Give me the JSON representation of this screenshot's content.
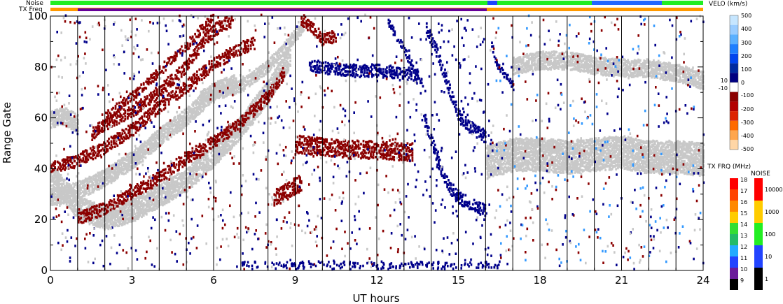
{
  "chart_data": {
    "type": "heatmap",
    "xlabel": "UT hours",
    "ylabel": "Range Gate",
    "xlim": [
      0,
      24
    ],
    "ylim": [
      0,
      100
    ],
    "x_ticks": [
      "0",
      "3",
      "6",
      "9",
      "12",
      "15",
      "18",
      "21",
      "24"
    ],
    "y_ticks": [
      "0",
      "20",
      "40",
      "60",
      "80",
      "100"
    ],
    "grid": "vertical lines every hour",
    "top_strips": {
      "noise_label": "Noise",
      "txfreq_label": "TX Freq"
    },
    "velocity_colorbar": {
      "title": "VELO (km/s)",
      "ticks": [
        "500",
        "400",
        "300",
        "200",
        "100",
        "0",
        "10",
        "-10",
        "-100",
        "-200",
        "-300",
        "-400",
        "-500"
      ]
    },
    "txfreq_colorbar": {
      "title": "TX FRQ (MHz)",
      "ticks": [
        "18",
        "17",
        "16",
        "15",
        "14",
        "13",
        "12",
        "11",
        "10",
        "9"
      ]
    },
    "noise_colorbar": {
      "title": "NOISE",
      "ticks": [
        "10000",
        "1000",
        "100",
        "10",
        "1"
      ]
    },
    "echo_bands": [
      {
        "name": "gray band A",
        "color": "#c8c8c8",
        "points": [
          [
            0,
            37
          ],
          [
            1,
            24
          ],
          [
            2,
            20
          ],
          [
            3,
            23
          ],
          [
            4,
            29
          ],
          [
            5,
            35
          ],
          [
            6,
            45
          ],
          [
            7,
            56
          ],
          [
            8,
            70
          ],
          [
            8.8,
            84
          ]
        ],
        "halfwidth": 4
      },
      {
        "name": "gray band B",
        "color": "#c8c8c8",
        "points": [
          [
            0,
            59
          ],
          [
            0.5,
            60
          ],
          [
            1,
            57
          ]
        ],
        "halfwidth": 3
      },
      {
        "name": "gray band C",
        "color": "#c8c8c8",
        "points": [
          [
            5.5,
            68
          ],
          [
            6,
            69
          ],
          [
            7,
            72
          ],
          [
            8,
            80
          ],
          [
            9,
            92
          ],
          [
            9.3,
            96
          ]
        ],
        "halfwidth": 2
      },
      {
        "name": "gray band D",
        "color": "#c8c8c8",
        "points": [
          [
            0,
            28
          ],
          [
            1,
            31
          ],
          [
            2,
            36
          ],
          [
            3,
            43
          ],
          [
            4,
            52
          ],
          [
            5,
            60
          ],
          [
            6,
            70
          ],
          [
            6.8,
            73
          ]
        ],
        "halfwidth": 3
      },
      {
        "name": "gray band E",
        "color": "#c8c8c8",
        "points": [
          [
            16,
            42
          ],
          [
            17,
            45
          ],
          [
            18,
            45
          ],
          [
            19,
            44
          ],
          [
            20,
            45
          ],
          [
            21,
            46
          ],
          [
            22,
            44
          ],
          [
            23,
            44
          ],
          [
            24,
            43
          ]
        ],
        "halfwidth": 6
      },
      {
        "name": "gray band F",
        "color": "#c8c8c8",
        "points": [
          [
            17,
            80
          ],
          [
            18,
            82
          ],
          [
            19,
            82
          ],
          [
            20,
            80
          ],
          [
            21,
            79
          ],
          [
            22,
            79
          ],
          [
            23,
            77
          ],
          [
            24,
            74
          ]
        ],
        "halfwidth": 3
      },
      {
        "name": "red band 1",
        "color": "#8b0000",
        "points": [
          [
            1,
            20
          ],
          [
            2,
            24
          ],
          [
            3,
            30
          ],
          [
            4,
            36
          ],
          [
            5,
            44
          ],
          [
            6,
            50
          ],
          [
            7,
            58
          ],
          [
            8,
            68
          ],
          [
            8.6,
            78
          ]
        ],
        "halfwidth": 2
      },
      {
        "name": "red band 2",
        "color": "#8b0000",
        "points": [
          [
            0,
            40
          ],
          [
            1,
            43
          ],
          [
            2,
            48
          ],
          [
            3,
            55
          ],
          [
            4,
            64
          ],
          [
            5,
            72
          ],
          [
            6,
            81
          ],
          [
            7,
            87
          ],
          [
            7.5,
            89
          ]
        ],
        "halfwidth": 2
      },
      {
        "name": "red band 3",
        "color": "#8b0000",
        "points": [
          [
            1.5,
            53
          ],
          [
            2,
            57
          ],
          [
            3,
            62
          ],
          [
            4,
            70
          ],
          [
            5,
            80
          ],
          [
            5.5,
            88
          ],
          [
            6,
            94
          ],
          [
            6.7,
            98
          ]
        ],
        "halfwidth": 2
      },
      {
        "name": "red band 4",
        "color": "#8b0000",
        "points": [
          [
            2,
            60
          ],
          [
            3,
            68
          ],
          [
            4,
            78
          ],
          [
            5,
            88
          ],
          [
            5.5,
            94
          ],
          [
            6,
            99
          ]
        ],
        "halfwidth": 1.5
      },
      {
        "name": "red clump 9h",
        "color": "#8b0000",
        "points": [
          [
            8.2,
            28
          ],
          [
            8.7,
            31
          ],
          [
            9.2,
            34
          ]
        ],
        "halfwidth": 3
      },
      {
        "name": "red band 12h",
        "color": "#8b0000",
        "points": [
          [
            9,
            49
          ],
          [
            10,
            48
          ],
          [
            11,
            47
          ],
          [
            12,
            47
          ],
          [
            13,
            46
          ],
          [
            13.3,
            46
          ]
        ],
        "halfwidth": 3
      },
      {
        "name": "red band 9h top",
        "color": "#8b0000",
        "points": [
          [
            9.2,
            98
          ],
          [
            9.6,
            95
          ],
          [
            10,
            90
          ],
          [
            10.5,
            92
          ]
        ],
        "halfwidth": 2
      },
      {
        "name": "blue curve 14h",
        "color": "#00008b",
        "points": [
          [
            13.7,
            60
          ],
          [
            14,
            50
          ],
          [
            14.3,
            40
          ],
          [
            14.6,
            33
          ],
          [
            15,
            28
          ],
          [
            15.5,
            25
          ],
          [
            16,
            23
          ]
        ],
        "halfwidth": 2
      },
      {
        "name": "blue curve 14h upper",
        "color": "#00008b",
        "points": [
          [
            13.8,
            95
          ],
          [
            14.2,
            85
          ],
          [
            14.6,
            72
          ],
          [
            15,
            60
          ],
          [
            15.5,
            55
          ],
          [
            16,
            52
          ]
        ],
        "halfwidth": 2
      },
      {
        "name": "blue band 11h",
        "color": "#00008b",
        "points": [
          [
            9.5,
            80
          ],
          [
            10,
            79
          ],
          [
            11,
            78
          ],
          [
            12,
            78
          ],
          [
            13,
            77
          ],
          [
            13.5,
            76
          ]
        ],
        "halfwidth": 2
      },
      {
        "name": "blue curve 13h",
        "color": "#00008b",
        "points": [
          [
            12.4,
            97
          ],
          [
            12.8,
            90
          ],
          [
            13.3,
            80
          ],
          [
            13.7,
            72
          ]
        ],
        "halfwidth": 1.2
      },
      {
        "name": "blue curve 16h",
        "color": "#00008b",
        "points": [
          [
            16.2,
            88
          ],
          [
            16.4,
            80
          ],
          [
            16.8,
            75
          ],
          [
            17,
            72
          ]
        ],
        "halfwidth": 1
      }
    ]
  }
}
